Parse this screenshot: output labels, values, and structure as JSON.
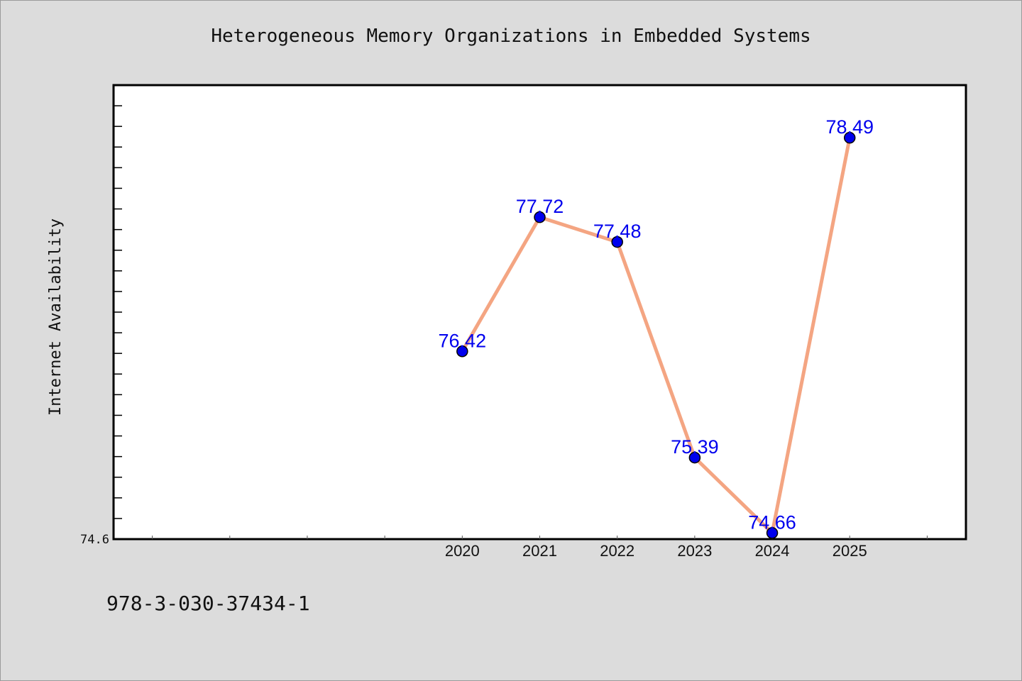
{
  "chart_data": {
    "type": "line",
    "title": "Heterogeneous Memory Organizations in Embedded Systems",
    "xlabel": "",
    "ylabel": "Internet Availability",
    "x": [
      "2020",
      "2021",
      "2022",
      "2023",
      "2024",
      "2025"
    ],
    "series": [
      {
        "values": [
          76.42,
          77.72,
          77.48,
          75.39,
          74.66,
          78.49
        ]
      }
    ],
    "data_labels": [
      "76.42",
      "77.72",
      "77.48",
      "75.39",
      "74.66",
      "78.49"
    ],
    "y_tick_labels": [
      "74.6"
    ],
    "x_extent": [
      2015.5,
      2026.5
    ],
    "ylim": [
      74.6,
      79.0
    ],
    "grid": false,
    "line_color": "#f4a582",
    "marker_color": "#0000ee",
    "label_color": "#0000ee"
  },
  "footer_text": "978-3-030-37434-1"
}
